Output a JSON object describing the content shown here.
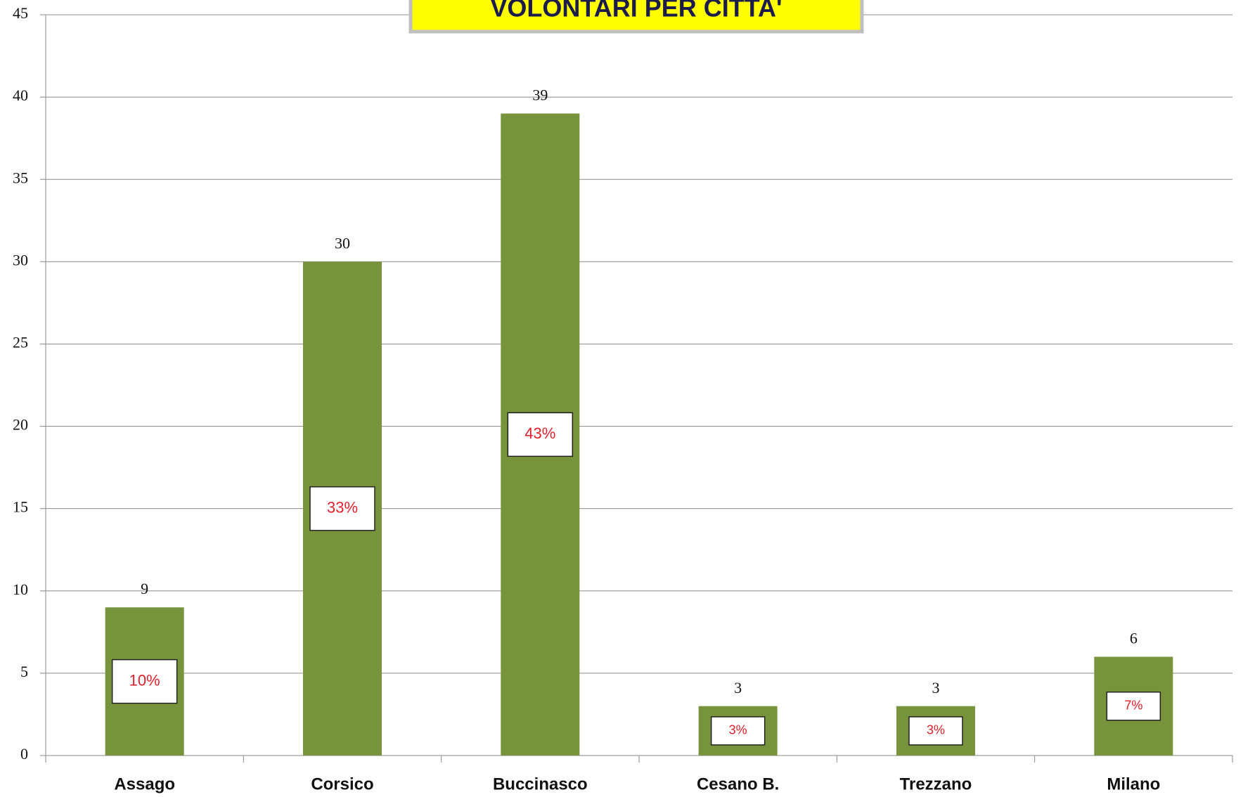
{
  "chart_data": {
    "type": "bar",
    "title": "VOLONTARI PER CITTA'",
    "categories": [
      "Assago",
      "Corsico",
      "Buccinasco",
      "Cesano B.",
      "Trezzano",
      "Milano"
    ],
    "values": [
      9,
      30,
      39,
      3,
      3,
      6
    ],
    "percent_values": [
      10,
      33,
      43,
      3,
      3,
      7
    ],
    "percent_labels": [
      "10%",
      "33%",
      "43%",
      "3%",
      "3%",
      "7%"
    ],
    "color": "#77933c",
    "ylim": [
      0,
      45
    ],
    "yticks": [
      0,
      5,
      10,
      15,
      20,
      25,
      30,
      35,
      40,
      45
    ],
    "grid": true
  }
}
